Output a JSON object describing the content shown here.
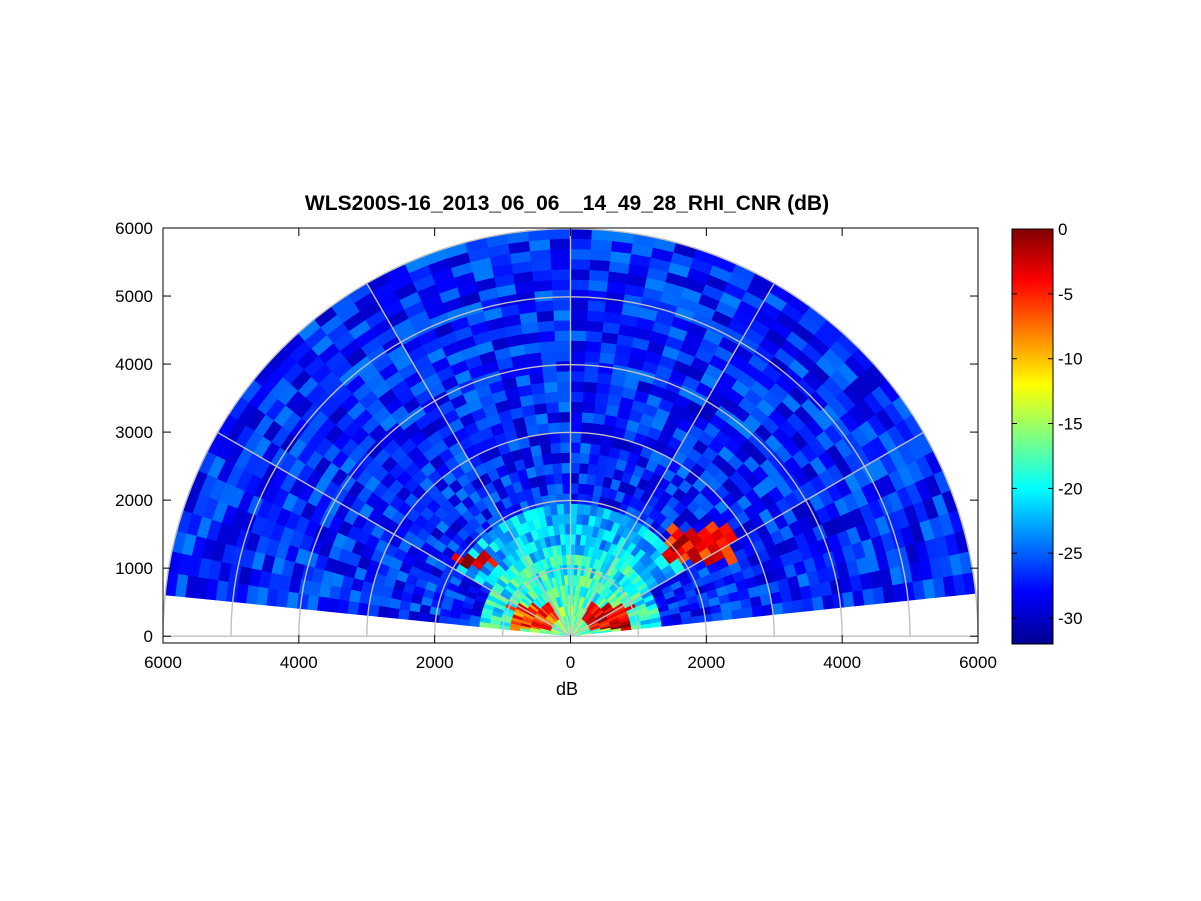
{
  "chart_data": {
    "type": "heatmap",
    "subtype": "polar RHI scan (range-height indicator)",
    "title": "WLS200S-16_2013_06_06__14_49_28_RHI_CNR (dB)",
    "xlabel": "dB",
    "ylabel": "",
    "x_ticks": [
      "6000",
      "4000",
      "2000",
      "0",
      "2000",
      "4000",
      "6000"
    ],
    "x_tick_values": [
      -6000,
      -4000,
      -2000,
      0,
      2000,
      4000,
      6000
    ],
    "y_ticks": [
      "0",
      "1000",
      "2000",
      "3000",
      "4000",
      "5000",
      "6000"
    ],
    "y_tick_values": [
      0,
      1000,
      2000,
      3000,
      4000,
      5000,
      6000
    ],
    "xlim": [
      -6000,
      6000
    ],
    "ylim": [
      -100,
      6000
    ],
    "range_rings": [
      1000,
      2000,
      3000,
      4000,
      5000,
      6000
    ],
    "spokes_deg": [
      30,
      60,
      90,
      120,
      150
    ],
    "scan_elevation_deg": [
      6,
      174
    ],
    "max_range": 6000,
    "grid": true,
    "colorbar": {
      "colormap": "jet",
      "clim": [
        -32,
        0
      ],
      "ticks": [
        0,
        -5,
        -10,
        -15,
        -20,
        -25,
        -30
      ],
      "tick_labels": [
        "0",
        "-5",
        "-10",
        "-15",
        "-20",
        "-25",
        "-30"
      ],
      "placement": "right"
    },
    "field_summary": {
      "background_level_db": -27,
      "near_range_level_db": -16,
      "strong_layer_1": {
        "range": [
          200,
          900
        ],
        "height": [
          100,
          450
        ],
        "level_db": -3
      },
      "strong_layer_2": {
        "range": [
          1100,
          1700
        ],
        "height": [
          1050,
          1200
        ],
        "level_db": -2
      },
      "strong_layer_3": {
        "range": [
          1400,
          2400
        ],
        "height": [
          1100,
          1600
        ],
        "level_db": -4
      }
    }
  }
}
